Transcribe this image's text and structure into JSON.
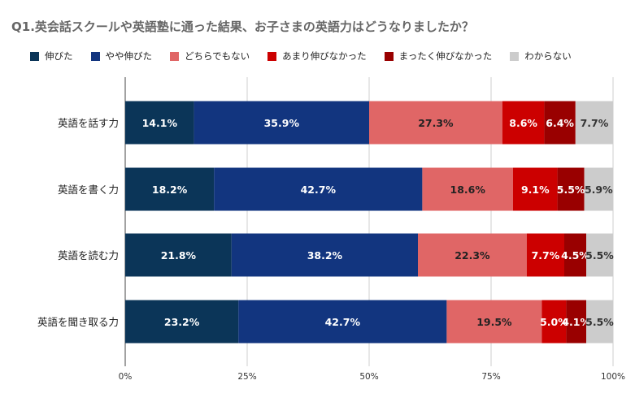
{
  "chart_data": {
    "type": "bar",
    "orientation": "horizontal",
    "stacked": true,
    "percent": true,
    "title": "Q1.英会話スクールや英語塾に通った結果、お子さまの英語力はどうなりましたか？",
    "categories": [
      "英語を話す力",
      "英語を書く力",
      "英語を読む力",
      "英語を聞き取る力"
    ],
    "series": [
      {
        "name": "伸びた",
        "color": "#0b3558",
        "values": [
          14.1,
          18.2,
          21.8,
          23.2
        ]
      },
      {
        "name": "やや伸びた",
        "color": "#12357f",
        "values": [
          35.9,
          42.7,
          38.2,
          42.7
        ]
      },
      {
        "name": "どちらでもない",
        "color": "#e06666",
        "values": [
          27.3,
          18.6,
          22.3,
          19.5
        ]
      },
      {
        "name": "あまり伸びなかった",
        "color": "#cc0000",
        "values": [
          8.6,
          9.1,
          7.7,
          5.0
        ]
      },
      {
        "name": "まったく伸びなかった",
        "color": "#990000",
        "values": [
          6.4,
          5.5,
          4.5,
          4.1
        ]
      },
      {
        "name": "わからない",
        "color": "#cccccc",
        "values": [
          7.7,
          5.9,
          5.5,
          5.5
        ]
      }
    ],
    "data_labels": [
      [
        "14.1%",
        "35.9%",
        "27.3%",
        "8.6%",
        "6.4%",
        "7.7%"
      ],
      [
        "18.2%",
        "42.7%",
        "18.6%",
        "9.1%",
        "5.5%",
        "5.9%"
      ],
      [
        "21.8%",
        "38.2%",
        "22.3%",
        "7.7%",
        "4.5%",
        "5.5%"
      ],
      [
        "23.2%",
        "42.7%",
        "19.5%",
        "5.0%",
        "4.1%",
        "5.5%"
      ]
    ],
    "xlim": [
      0,
      100
    ],
    "xticks": [
      "0%",
      "25%",
      "50%",
      "75%",
      "100%"
    ],
    "xticks_values": [
      0,
      25,
      50,
      75,
      100
    ],
    "grid": "vertical",
    "legend_position": "top-left"
  }
}
